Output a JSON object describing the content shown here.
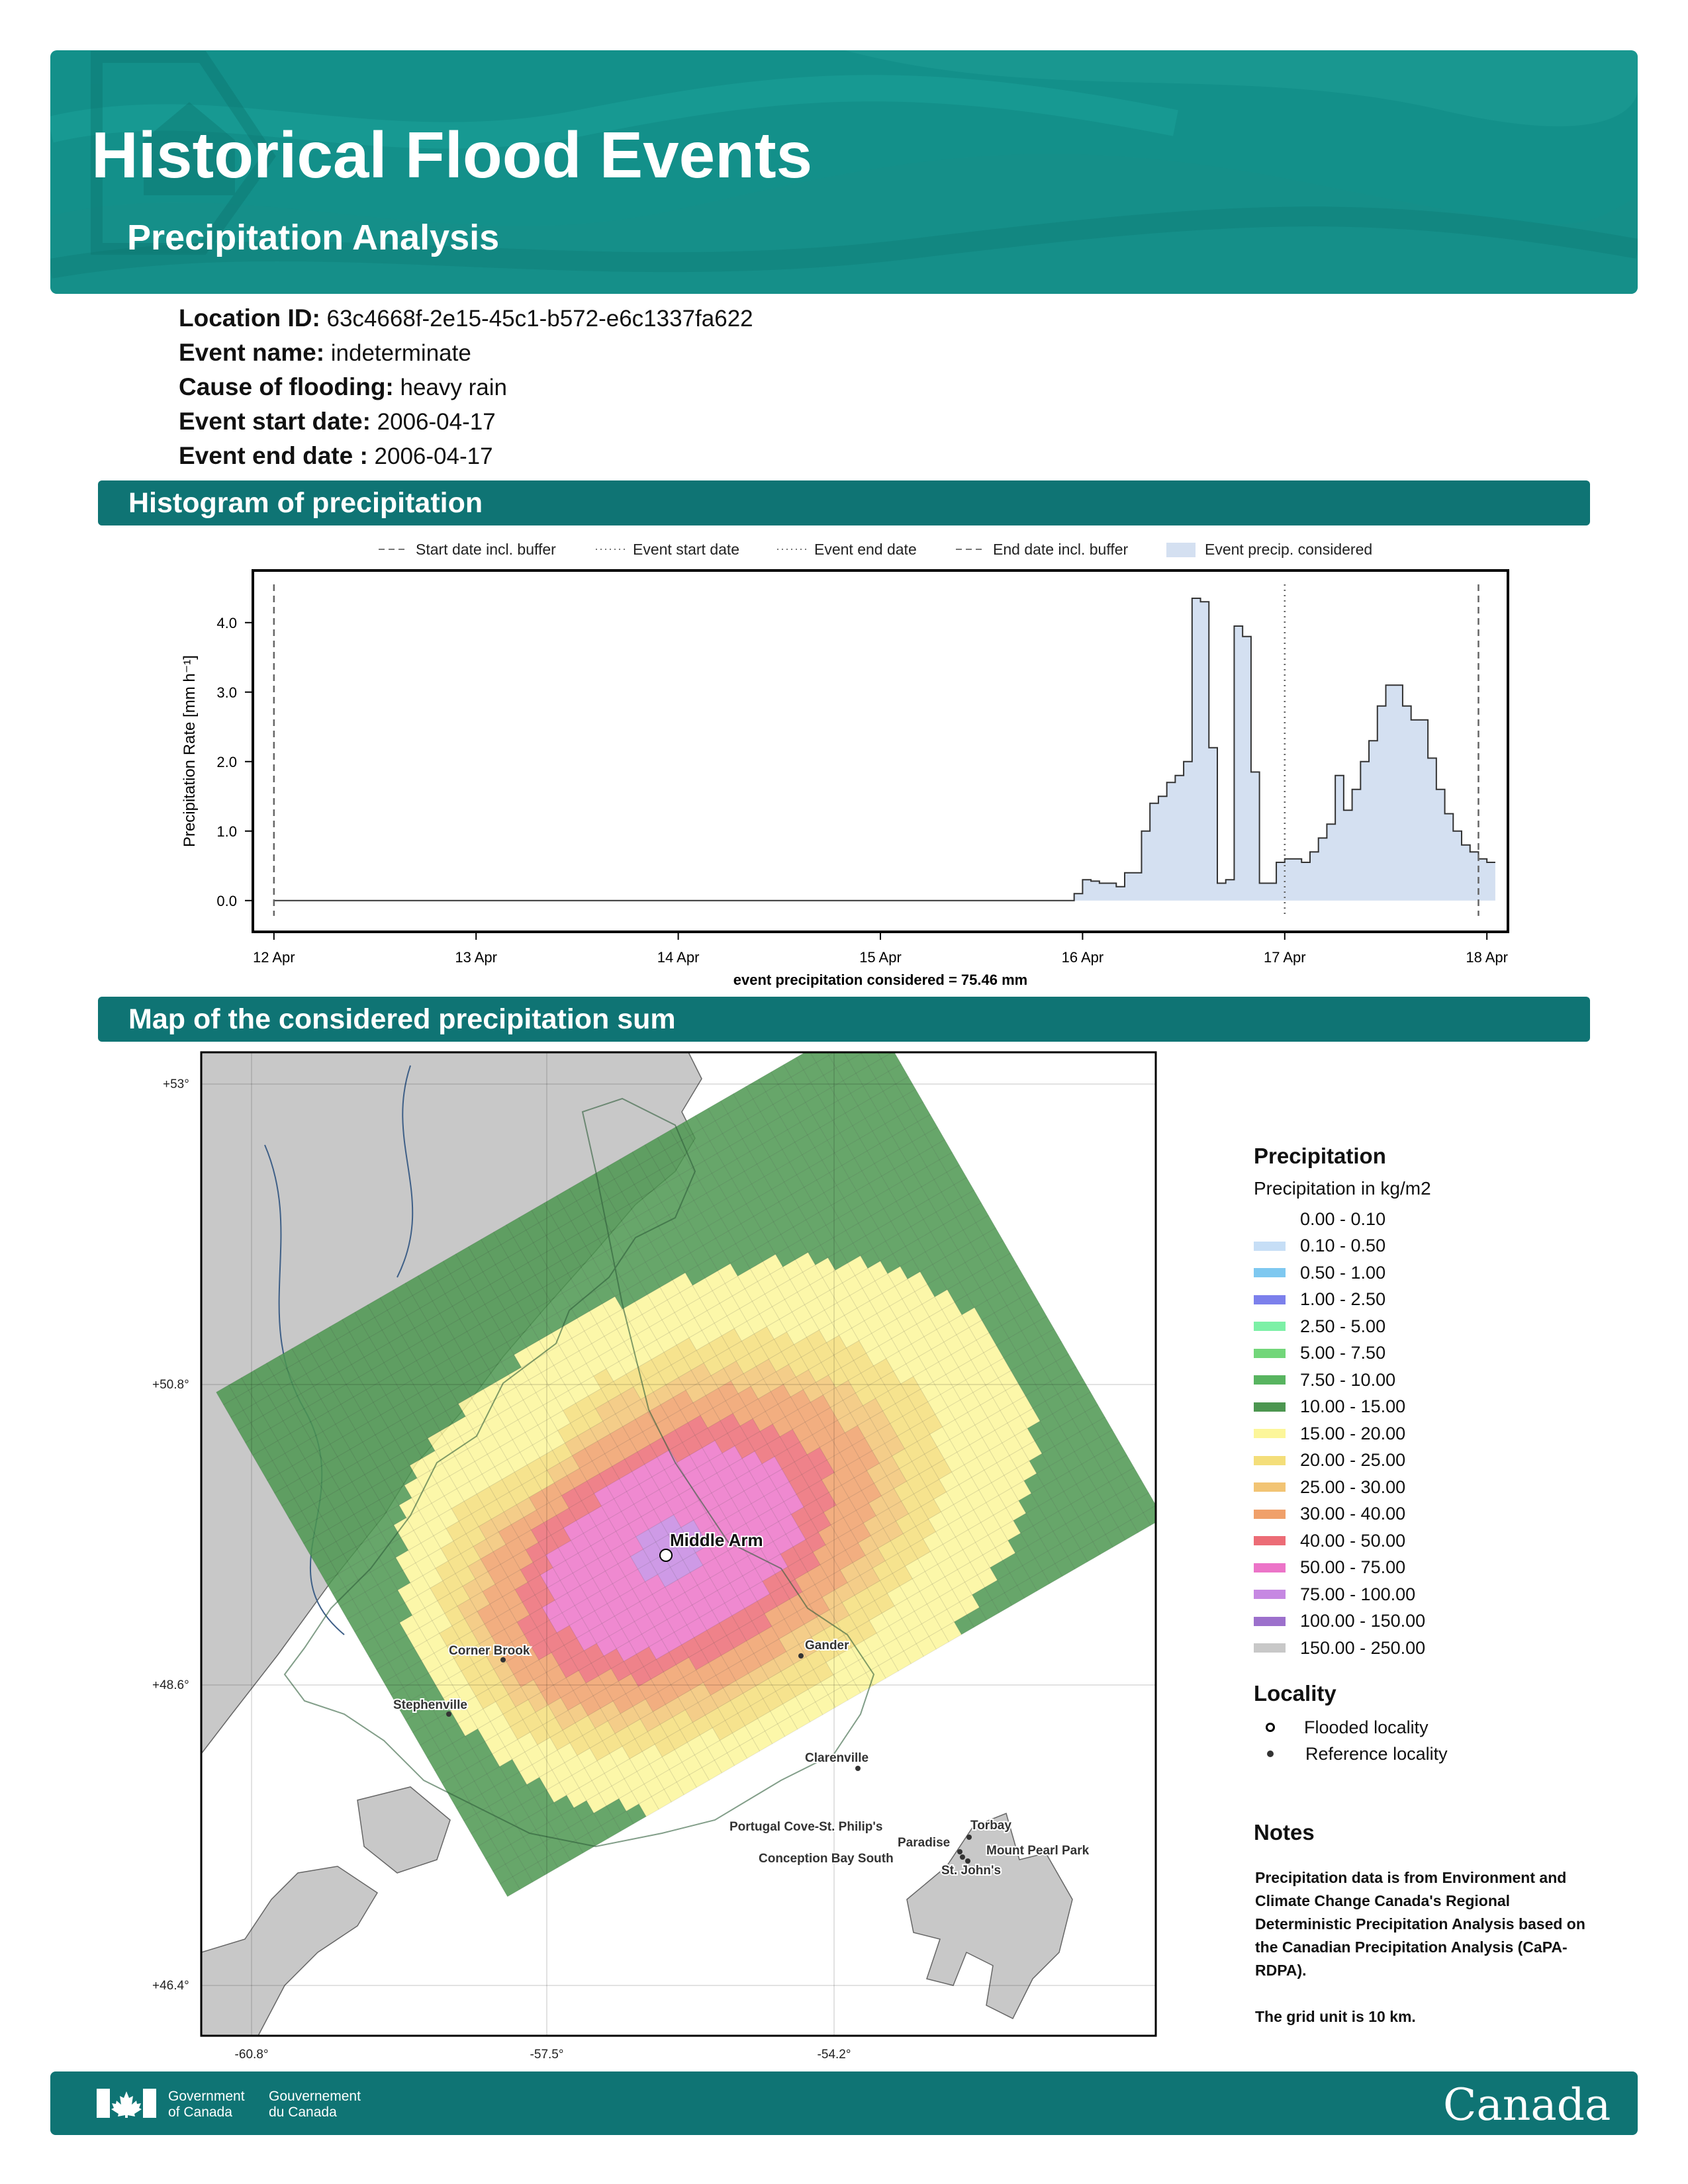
{
  "header": {
    "title": "Historical Flood Events",
    "subtitle": "Precipitation Analysis"
  },
  "info": [
    {
      "label": "Location ID:",
      "value": "63c4668f-2e15-45c1-b572-e6c1337fa622"
    },
    {
      "label": "Event name:",
      "value": "indeterminate"
    },
    {
      "label": "Cause of flooding:",
      "value": "heavy rain"
    },
    {
      "label": "Event start date:",
      "value": "2006-04-17"
    },
    {
      "label": "Event end date :",
      "value": "2006-04-17"
    }
  ],
  "sections": {
    "histogram": "Histogram of precipitation",
    "map": "Map of the considered precipitation sum"
  },
  "chart_data": {
    "type": "area",
    "title": "",
    "xlabel": "event precipitation considered = 75.46 mm",
    "ylabel": "Precipitation Rate [mm h⁻¹]",
    "ylim": [
      -0.45,
      4.75
    ],
    "xlim": [
      "2006-04-11T21:30",
      "2006-04-18T02:30"
    ],
    "x_ticks": [
      "12 Apr",
      "13 Apr",
      "14 Apr",
      "15 Apr",
      "16 Apr",
      "17 Apr",
      "18 Apr"
    ],
    "y_ticks": [
      "0.0",
      "1.0",
      "2.0",
      "3.0",
      "4.0"
    ],
    "grid": false,
    "legend": {
      "placement": "top",
      "entries": [
        "Start date incl. buffer",
        "Event start date",
        "Event end date",
        "End date incl. buffer",
        "Event precip. considered"
      ]
    },
    "fill_color": "#d4e0f1",
    "markers": [
      {
        "label": "Start date incl. buffer",
        "x": "2006-04-12T00:00",
        "style": "dashed"
      },
      {
        "label": "Event start date",
        "x": "2006-04-17T00:00",
        "style": "dotted"
      },
      {
        "label": "Event end date",
        "x": "2006-04-17T00:00",
        "style": "dotted"
      },
      {
        "label": "End date incl. buffer",
        "x": "2006-04-17T23:00",
        "style": "dashed"
      }
    ],
    "series": [
      {
        "values_start": "2006-04-15T23:00",
        "step_hours": 1,
        "values": [
          0.1,
          0.3,
          0.28,
          0.25,
          0.25,
          0.2,
          0.4,
          0.4,
          1.0,
          1.4,
          1.5,
          1.7,
          1.8,
          2.0,
          4.35,
          4.3,
          2.2,
          0.25,
          0.3,
          3.95,
          3.8,
          1.85,
          0.25,
          0.25,
          0.55,
          0.6,
          0.6,
          0.55,
          0.7,
          0.9,
          1.1,
          1.8,
          1.3,
          1.6,
          2.0,
          2.3,
          2.8,
          3.1,
          3.1,
          2.8,
          2.6,
          2.6,
          2.05,
          1.6,
          1.25,
          1.0,
          0.8,
          0.7,
          0.6,
          0.55
        ]
      }
    ]
  },
  "map": {
    "x_ticks": [
      "-60.8°",
      "-57.5°",
      "-54.2°"
    ],
    "y_ticks": [
      "+53°",
      "+50.8°",
      "+48.6°",
      "+46.4°"
    ],
    "flooded_locality": "Middle Arm",
    "reference_localities": [
      "Corner Brook",
      "Gander",
      "Stephenville",
      "Clarenville",
      "Portugal Cove-St. Philip's",
      "Torbay",
      "Paradise",
      "Conception Bay South",
      "Mount Pearl Park",
      "St. John's"
    ]
  },
  "legend": {
    "title": "Precipitation",
    "subtitle": "Precipitation in kg/m2",
    "classes": [
      {
        "label": "0.00 - 0.10",
        "color": "#ffffff"
      },
      {
        "label": "0.10 - 0.50",
        "color": "#c6def6"
      },
      {
        "label": "0.50 - 1.00",
        "color": "#7ec8f0"
      },
      {
        "label": "1.00 - 2.50",
        "color": "#7c80ec"
      },
      {
        "label": "2.50 - 5.00",
        "color": "#7cf0a6"
      },
      {
        "label": "5.00 - 7.50",
        "color": "#72d67a"
      },
      {
        "label": "7.50 - 10.00",
        "color": "#58b460"
      },
      {
        "label": "10.00 - 15.00",
        "color": "#4c9650"
      },
      {
        "label": "15.00 - 20.00",
        "color": "#fcf69a"
      },
      {
        "label": "20.00 - 25.00",
        "color": "#f4de7a"
      },
      {
        "label": "25.00 - 30.00",
        "color": "#f2c474"
      },
      {
        "label": "30.00 - 40.00",
        "color": "#f0a06a"
      },
      {
        "label": "40.00 - 50.00",
        "color": "#ec6c76"
      },
      {
        "label": "50.00 - 75.00",
        "color": "#ec74c8"
      },
      {
        "label": "75.00 - 100.00",
        "color": "#c688e2"
      },
      {
        "label": "100.00 - 150.00",
        "color": "#9c70cc"
      },
      {
        "label": "150.00 - 250.00",
        "color": "#c8c8c8"
      }
    ],
    "locality_title": "Locality",
    "flooded_label": "Flooded locality",
    "reference_label": "Reference locality"
  },
  "notes": {
    "title": "Notes",
    "text1": "Precipitation data is from Environment and Climate Change Canada's Regional Deterministic Precipitation Analysis based on the Canadian Precipitation Analysis (CaPA-RDPA).",
    "text2": "The grid unit is 10 km."
  },
  "footer": {
    "gov_en_1": "Government",
    "gov_en_2": "of Canada",
    "gov_fr_1": "Gouvernement",
    "gov_fr_2": "du Canada",
    "wordmark": "Canada"
  }
}
